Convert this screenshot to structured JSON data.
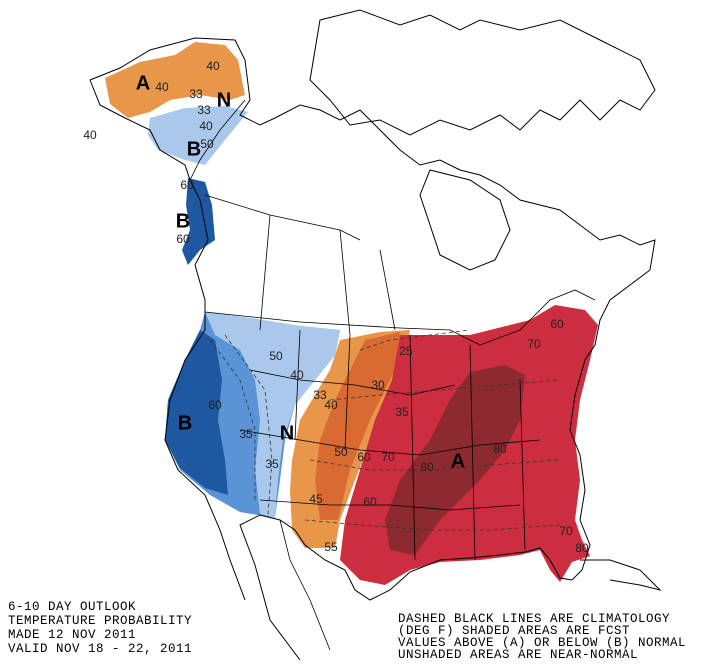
{
  "title_lines": [
    "6-10 DAY OUTLOOK",
    "TEMPERATURE PROBABILITY",
    "MADE  12 NOV 2011",
    "VALID  NOV 18 - 22, 2011"
  ],
  "notes": [
    "DASHED BLACK LINES ARE CLIMATOLOGY",
    "(DEG F) SHADED AREAS ARE FCST",
    "VALUES ABOVE (A) OR BELOW (B) NORMAL",
    "UNSHADED AREAS ARE NEAR-NORMAL"
  ],
  "labels": [
    "A",
    "N",
    "B",
    "B",
    "B",
    "N",
    "A"
  ],
  "contour_labels": [
    40,
    40,
    33,
    33,
    40,
    40,
    50,
    60,
    60,
    50,
    40,
    60,
    33,
    40,
    35,
    35,
    45,
    55,
    50,
    60,
    70,
    25,
    30,
    35,
    60,
    80,
    80,
    70,
    60,
    70,
    80
  ]
}
